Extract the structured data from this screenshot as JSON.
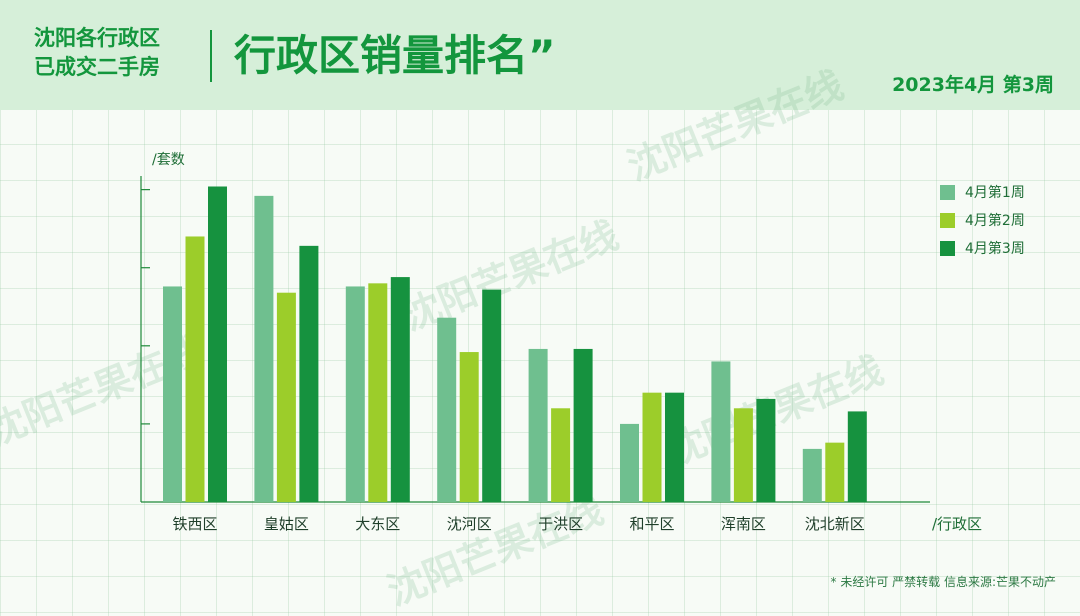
{
  "header": {
    "left_line1": "沈阳各行政区",
    "left_line2": "已成交二手房",
    "title": "行政区销量排名”",
    "week": "2023年4月 第3周"
  },
  "footer_note": "* 未经许可 严禁转载 信息来源:芒果不动产",
  "watermark": "沈阳芒果在线",
  "colors": {
    "header_bg": "#d6efd9",
    "brand_green": "#13963d",
    "week1": "#6fbf8f",
    "week2": "#9ccd2a",
    "week3": "#16923f",
    "axis": "#1f8a3a"
  },
  "chart_data": {
    "type": "bar",
    "ylabel": "/套数",
    "xlabel": "/行政区",
    "categories": [
      "铁西区",
      "皇姑区",
      "大东区",
      "沈河区",
      "于洪区",
      "和平区",
      "浑南区",
      "沈北新区"
    ],
    "series": [
      {
        "name": "4月第1周",
        "values": [
          69,
          98,
          69,
          59,
          49,
          25,
          45,
          17
        ]
      },
      {
        "name": "4月第2周",
        "values": [
          85,
          67,
          70,
          48,
          30,
          35,
          30,
          19
        ]
      },
      {
        "name": "4月第3周",
        "values": [
          101,
          82,
          72,
          68,
          49,
          35,
          33,
          29
        ]
      }
    ],
    "ylim": [
      0,
      105
    ],
    "yticks": [
      25,
      50,
      75,
      100
    ],
    "ytick_labels_visible": false,
    "grid": false,
    "legend": "right"
  }
}
